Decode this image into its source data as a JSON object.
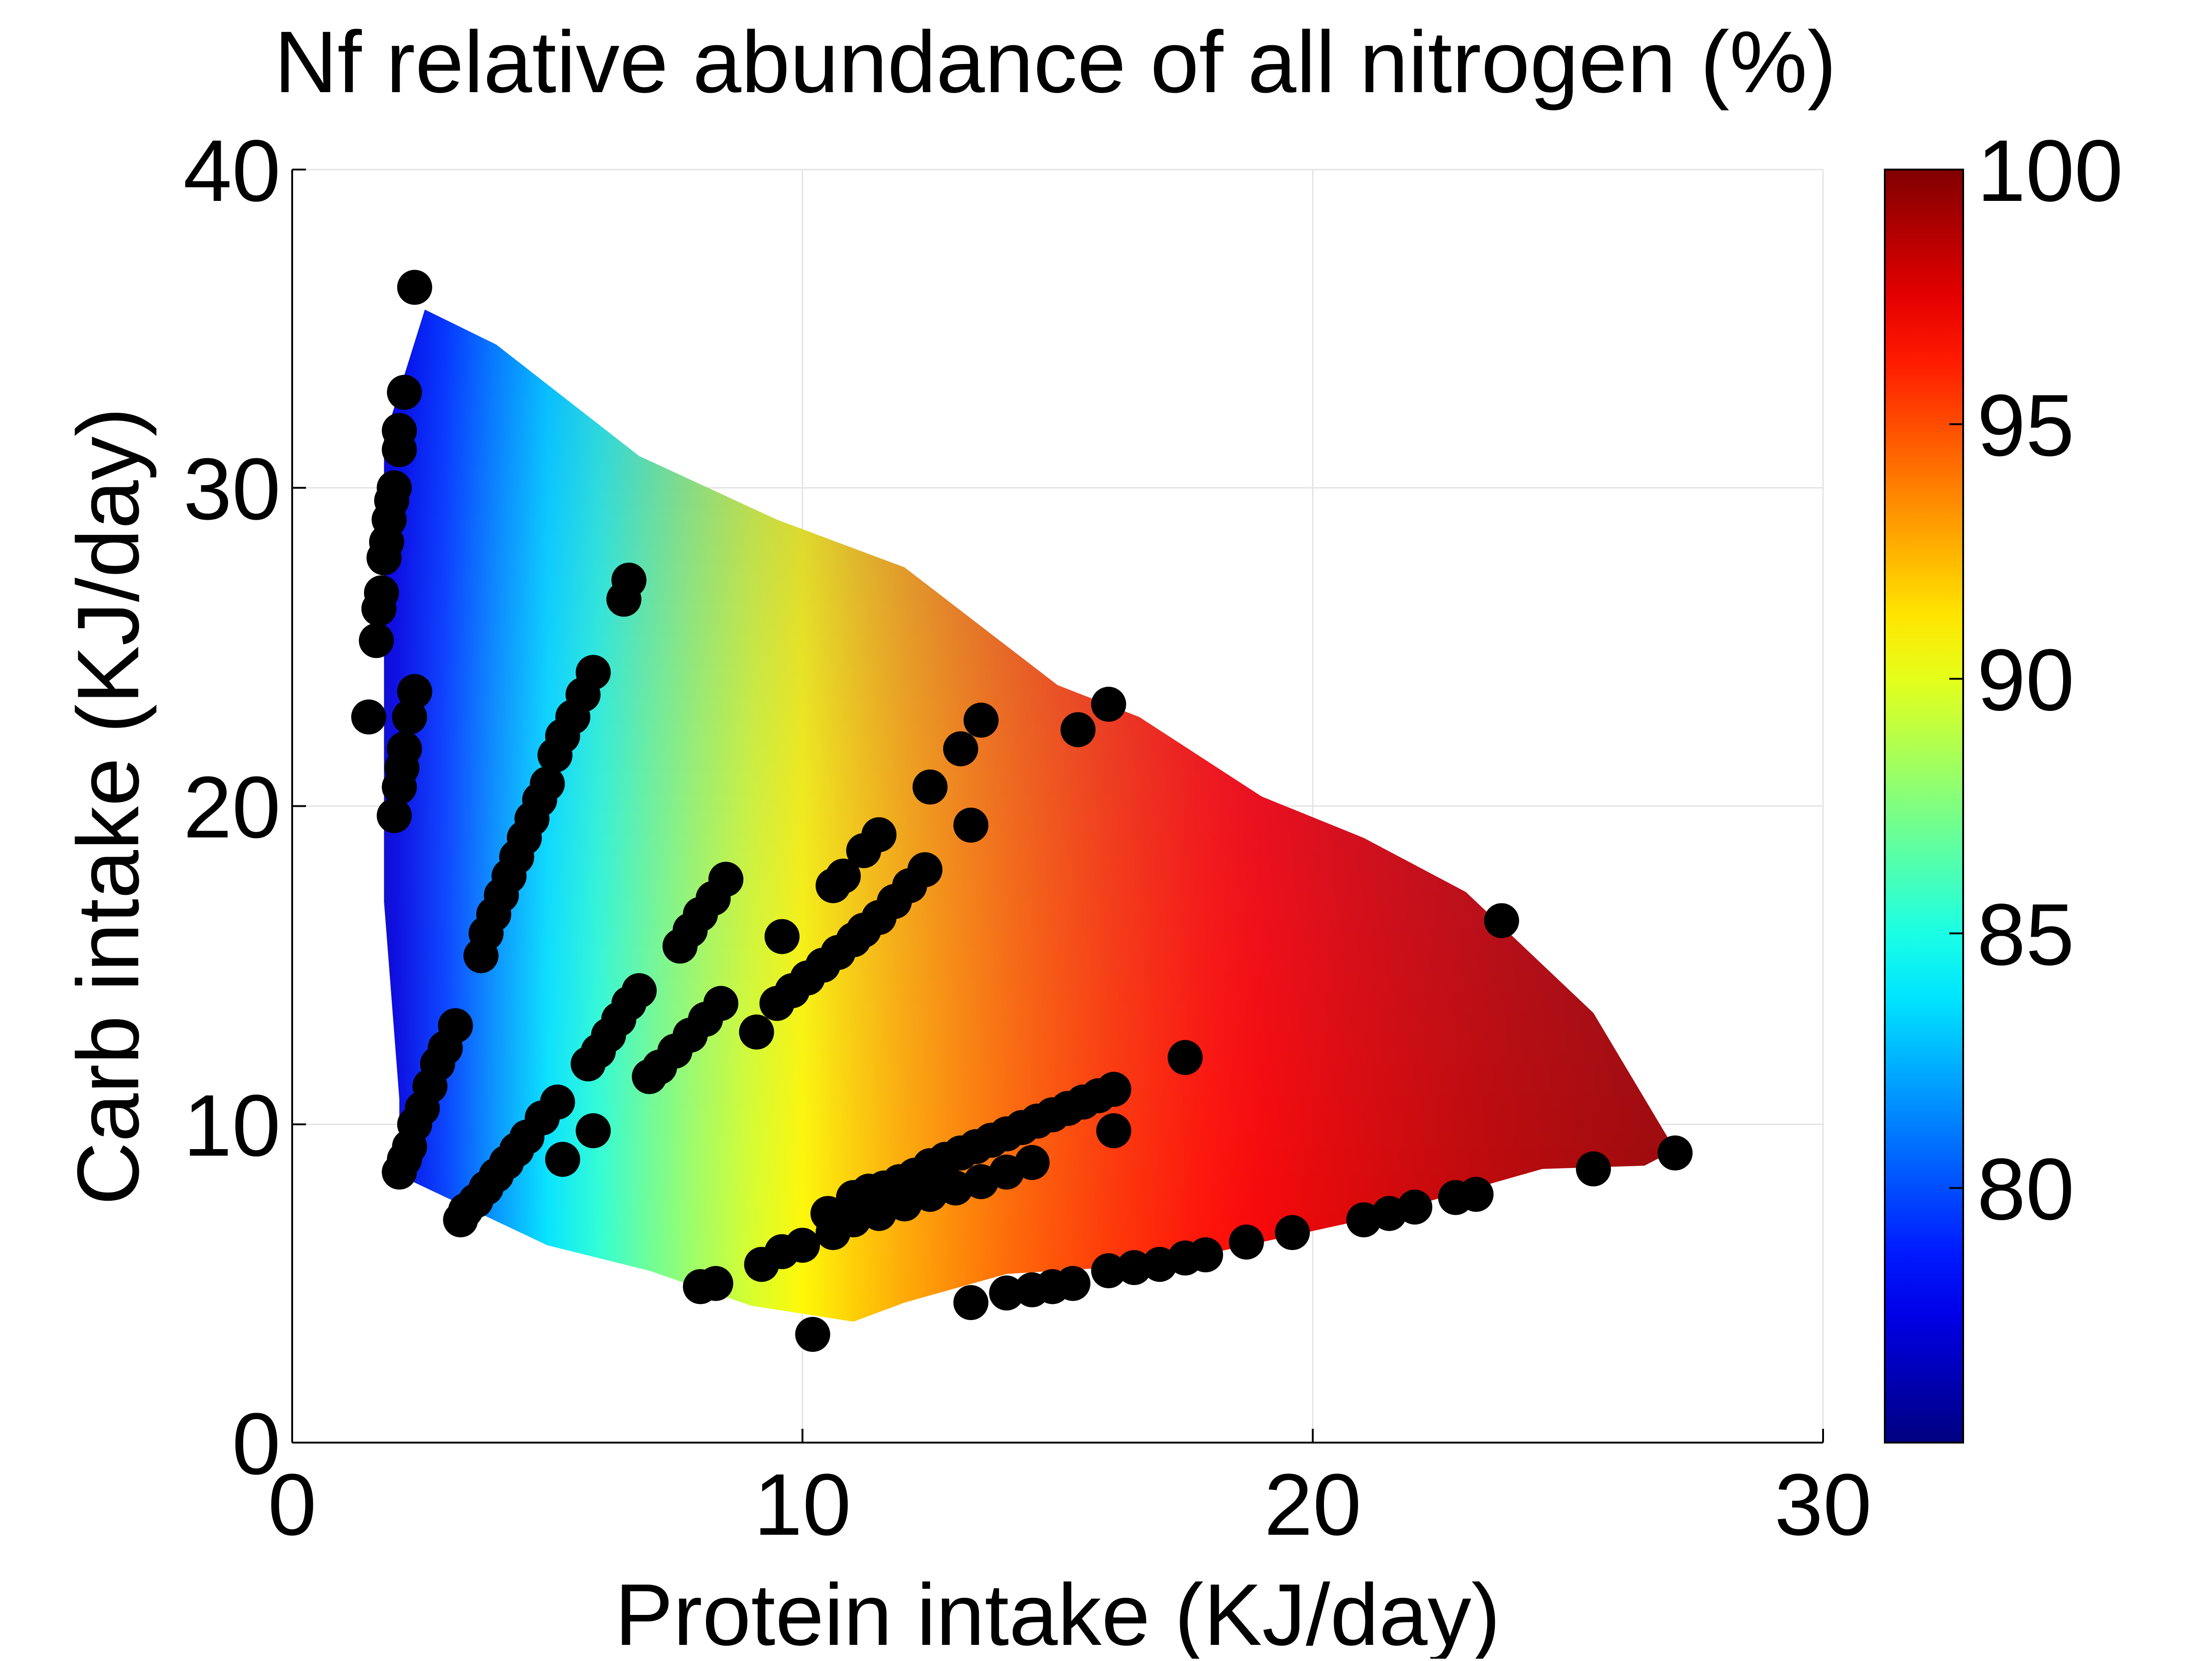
{
  "chart_data": {
    "type": "heatmap",
    "title": "Nf relative abundance of all nitrogen (%)",
    "xlabel": "Protein intake (KJ/day)",
    "ylabel": "Carb intake (KJ/day)",
    "xlim": [
      0,
      30
    ],
    "ylim": [
      0,
      40
    ],
    "xticks": [
      0,
      10,
      20,
      30
    ],
    "yticks": [
      0,
      10,
      20,
      30,
      40
    ],
    "grid": true,
    "colorbar": {
      "label": "",
      "colormap": "jet",
      "range": [
        75,
        100
      ],
      "ticks": [
        80,
        85,
        90,
        95,
        100
      ],
      "position": "right"
    },
    "surface": {
      "model": "value rises with protein intake and falls with carb intake",
      "region": [
        [
          1.8,
          17
        ],
        [
          1.8,
          31.5
        ],
        [
          2.6,
          35.6
        ],
        [
          4,
          34.5
        ],
        [
          6.8,
          31
        ],
        [
          9.5,
          29
        ],
        [
          12,
          27.5
        ],
        [
          15,
          23.8
        ],
        [
          16.6,
          22.8
        ],
        [
          19,
          20.3
        ],
        [
          21,
          19
        ],
        [
          23,
          17.3
        ],
        [
          25.5,
          13.5
        ],
        [
          27.1,
          9.2
        ],
        [
          26.5,
          8.7
        ],
        [
          24.5,
          8.6
        ],
        [
          21,
          7
        ],
        [
          17,
          5.6
        ],
        [
          14,
          5.3
        ],
        [
          12,
          4.4
        ],
        [
          11,
          3.8
        ],
        [
          9,
          4.3
        ],
        [
          7,
          5.4
        ],
        [
          5,
          6.2
        ],
        [
          2.1,
          8.4
        ],
        [
          2.1,
          10.8
        ]
      ]
    },
    "series": [
      {
        "marker": "filled-circle",
        "color": "#000000",
        "points": [
          [
            2.4,
            36.3
          ],
          [
            2.2,
            33.0
          ],
          [
            2.1,
            31.8
          ],
          [
            2.1,
            31.2
          ],
          [
            2.0,
            30.0
          ],
          [
            1.95,
            29.6
          ],
          [
            1.9,
            29.0
          ],
          [
            1.85,
            28.3
          ],
          [
            1.8,
            27.8
          ],
          [
            1.75,
            26.7
          ],
          [
            1.7,
            26.2
          ],
          [
            1.65,
            25.2
          ],
          [
            1.5,
            22.8
          ],
          [
            2.4,
            23.6
          ],
          [
            2.3,
            22.8
          ],
          [
            2.2,
            21.8
          ],
          [
            2.15,
            21.2
          ],
          [
            2.1,
            20.6
          ],
          [
            2.0,
            19.7
          ],
          [
            6.6,
            27.1
          ],
          [
            6.5,
            26.5
          ],
          [
            5.9,
            24.2
          ],
          [
            5.7,
            23.5
          ],
          [
            5.5,
            22.8
          ],
          [
            5.3,
            22.2
          ],
          [
            5.15,
            21.6
          ],
          [
            5.0,
            20.7
          ],
          [
            4.85,
            20.2
          ],
          [
            4.7,
            19.6
          ],
          [
            4.55,
            19.0
          ],
          [
            4.4,
            18.4
          ],
          [
            4.25,
            17.8
          ],
          [
            4.1,
            17.2
          ],
          [
            3.95,
            16.6
          ],
          [
            3.8,
            16.0
          ],
          [
            3.7,
            15.3
          ],
          [
            3.2,
            13.1
          ],
          [
            3.0,
            12.4
          ],
          [
            2.85,
            11.9
          ],
          [
            2.7,
            11.2
          ],
          [
            2.55,
            10.5
          ],
          [
            2.4,
            10.0
          ],
          [
            2.3,
            9.3
          ],
          [
            2.2,
            8.9
          ],
          [
            2.1,
            8.5
          ],
          [
            8.5,
            17.7
          ],
          [
            8.25,
            17.1
          ],
          [
            8.0,
            16.6
          ],
          [
            7.8,
            16.1
          ],
          [
            7.6,
            15.6
          ],
          [
            6.8,
            14.2
          ],
          [
            6.6,
            13.8
          ],
          [
            6.4,
            13.3
          ],
          [
            6.2,
            12.8
          ],
          [
            6.0,
            12.3
          ],
          [
            5.8,
            11.9
          ],
          [
            5.2,
            10.7
          ],
          [
            4.9,
            10.2
          ],
          [
            4.6,
            9.6
          ],
          [
            4.4,
            9.2
          ],
          [
            4.2,
            8.8
          ],
          [
            4.0,
            8.4
          ],
          [
            3.8,
            8.0
          ],
          [
            3.6,
            7.6
          ],
          [
            3.4,
            7.3
          ],
          [
            3.3,
            7.0
          ],
          [
            5.3,
            8.9
          ],
          [
            5.9,
            9.8
          ],
          [
            8.4,
            13.8
          ],
          [
            8.1,
            13.3
          ],
          [
            7.8,
            12.8
          ],
          [
            7.5,
            12.3
          ],
          [
            7.2,
            11.8
          ],
          [
            7.0,
            11.5
          ],
          [
            9.6,
            15.9
          ],
          [
            9.1,
            12.9
          ],
          [
            13.5,
            22.7
          ],
          [
            13.1,
            21.8
          ],
          [
            12.5,
            20.6
          ],
          [
            13.3,
            19.4
          ],
          [
            11.5,
            19.1
          ],
          [
            11.2,
            18.6
          ],
          [
            10.8,
            17.8
          ],
          [
            10.6,
            17.5
          ],
          [
            12.4,
            18.0
          ],
          [
            12.1,
            17.5
          ],
          [
            11.8,
            17.0
          ],
          [
            11.5,
            16.5
          ],
          [
            11.2,
            16.1
          ],
          [
            11.0,
            15.8
          ],
          [
            10.7,
            15.4
          ],
          [
            10.4,
            15.0
          ],
          [
            10.1,
            14.6
          ],
          [
            9.8,
            14.2
          ],
          [
            9.5,
            13.8
          ],
          [
            16.0,
            23.2
          ],
          [
            15.4,
            22.4
          ],
          [
            23.7,
            16.4
          ],
          [
            17.5,
            12.1
          ],
          [
            16.1,
            11.1
          ],
          [
            15.8,
            10.9
          ],
          [
            15.5,
            10.7
          ],
          [
            15.2,
            10.5
          ],
          [
            14.9,
            10.3
          ],
          [
            14.6,
            10.1
          ],
          [
            14.3,
            9.9
          ],
          [
            14.0,
            9.7
          ],
          [
            13.7,
            9.5
          ],
          [
            13.4,
            9.3
          ],
          [
            13.1,
            9.1
          ],
          [
            12.8,
            8.9
          ],
          [
            12.5,
            8.7
          ],
          [
            12.2,
            8.4
          ],
          [
            11.9,
            8.2
          ],
          [
            11.6,
            8.0
          ],
          [
            11.3,
            7.9
          ],
          [
            11.0,
            7.7
          ],
          [
            16.1,
            9.8
          ],
          [
            14.5,
            8.8
          ],
          [
            14.0,
            8.5
          ],
          [
            13.5,
            8.2
          ],
          [
            13.0,
            8.0
          ],
          [
            12.5,
            7.8
          ],
          [
            12.0,
            7.5
          ],
          [
            11.5,
            7.2
          ],
          [
            11.0,
            7.0
          ],
          [
            10.6,
            6.6
          ],
          [
            10.5,
            7.2
          ],
          [
            10.0,
            6.2
          ],
          [
            9.6,
            6.0
          ],
          [
            9.2,
            5.6
          ],
          [
            8.3,
            5.0
          ],
          [
            8.0,
            4.9
          ],
          [
            10.2,
            3.4
          ],
          [
            13.3,
            4.4
          ],
          [
            14.0,
            4.7
          ],
          [
            14.5,
            4.8
          ],
          [
            14.9,
            4.9
          ],
          [
            15.3,
            5.0
          ],
          [
            16.0,
            5.4
          ],
          [
            16.5,
            5.5
          ],
          [
            17.0,
            5.6
          ],
          [
            17.5,
            5.8
          ],
          [
            17.9,
            5.9
          ],
          [
            18.7,
            6.3
          ],
          [
            19.6,
            6.6
          ],
          [
            21.0,
            7.0
          ],
          [
            21.5,
            7.2
          ],
          [
            22.0,
            7.4
          ],
          [
            22.8,
            7.7
          ],
          [
            23.2,
            7.8
          ],
          [
            25.5,
            8.6
          ],
          [
            27.1,
            9.1
          ]
        ]
      }
    ]
  }
}
